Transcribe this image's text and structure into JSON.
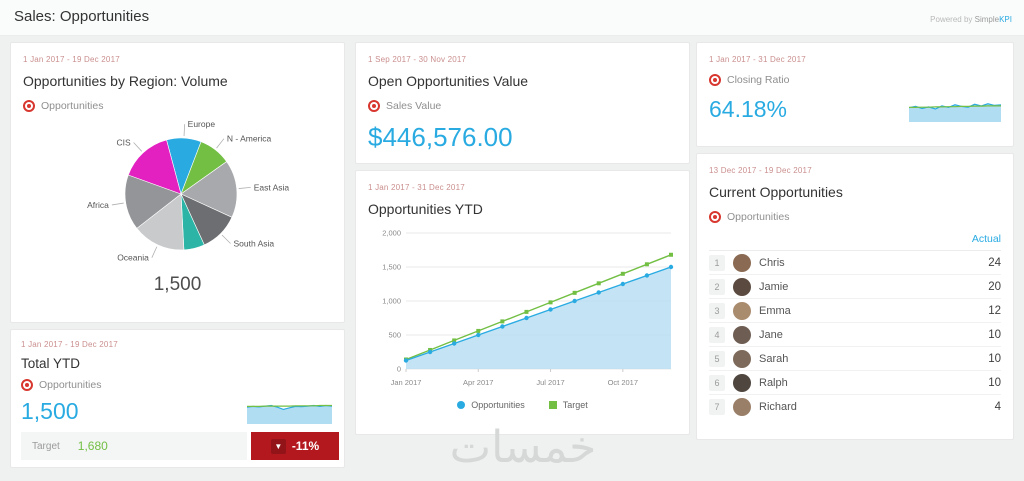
{
  "header": {
    "title": "Sales: Opportunities",
    "powered_by": "Powered by ",
    "brand_simple": "Simple",
    "brand_kpi": "KPI"
  },
  "watermark": "خمسات",
  "cards": {
    "region_volume": {
      "date_range": "1 Jan 2017 - 19 Dec 2017",
      "title": "Opportunities by Region: Volume",
      "kpi_label": "Opportunities",
      "total": "1,500"
    },
    "total_ytd": {
      "date_range": "1 Jan 2017 - 19 Dec 2017",
      "title": "Total YTD",
      "kpi_label": "Opportunities",
      "value": "1,500",
      "target_label": "Target",
      "target_value": "1,680",
      "target_value_color": "#72bf44",
      "delta": "-11%",
      "delta_color": "#b2181e"
    },
    "open_value": {
      "date_range": "1 Sep 2017 - 30 Nov 2017",
      "title": "Open Opportunities Value",
      "kpi_label": "Sales Value",
      "value": "$446,576.00"
    },
    "ytd_chart": {
      "date_range": "1 Jan 2017 - 31 Dec 2017",
      "title": "Opportunities YTD"
    },
    "closing_ratio": {
      "date_range": "1 Jan 2017 - 31 Dec 2017",
      "kpi_label": "Closing Ratio",
      "value": "64.18%"
    },
    "current_opportunities": {
      "date_range": "13 Dec 2017 - 19 Dec 2017",
      "title": "Current Opportunities",
      "kpi_label": "Opportunities",
      "column_header": "Actual",
      "rows": [
        {
          "rank": "1",
          "name": "Chris",
          "value": "24",
          "avatar_color": "#8a6a52"
        },
        {
          "rank": "2",
          "name": "Jamie",
          "value": "20",
          "avatar_color": "#5b4a3f"
        },
        {
          "rank": "3",
          "name": "Emma",
          "value": "12",
          "avatar_color": "#a98b6e"
        },
        {
          "rank": "4",
          "name": "Jane",
          "value": "10",
          "avatar_color": "#6e5d52"
        },
        {
          "rank": "5",
          "name": "Sarah",
          "value": "10",
          "avatar_color": "#7d6a5a"
        },
        {
          "rank": "6",
          "name": "Ralph",
          "value": "10",
          "avatar_color": "#4f463f"
        },
        {
          "rank": "7",
          "name": "Richard",
          "value": "4",
          "avatar_color": "#9a7f68"
        }
      ]
    }
  },
  "chart_data": [
    {
      "type": "pie",
      "title": "Opportunities by Region: Volume",
      "total": 1500,
      "total_label": "1,500",
      "start_angle": -15,
      "slices": [
        {
          "label": "Europe",
          "value": 150,
          "color": "#29abe2"
        },
        {
          "label": "N - America",
          "value": 140,
          "color": "#72bf44"
        },
        {
          "label": "East Asia",
          "value": 250,
          "color": "#a7a9ac"
        },
        {
          "label": "South Asia",
          "value": 170,
          "color": "#6d6e71"
        },
        {
          "label": "",
          "value": 90,
          "color": "#2cb5a6"
        },
        {
          "label": "Oceania",
          "value": 230,
          "color": "#c9cacc"
        },
        {
          "label": "Africa",
          "value": 240,
          "color": "#939598"
        },
        {
          "label": "CIS",
          "value": 230,
          "color": "#e320c0"
        }
      ]
    },
    {
      "type": "area",
      "title": "Opportunities YTD",
      "x": [
        "Jan 2017",
        "Feb 2017",
        "Mar 2017",
        "Apr 2017",
        "May 2017",
        "Jun 2017",
        "Jul 2017",
        "Aug 2017",
        "Sep 2017",
        "Oct 2017",
        "Nov 2017",
        "Dec 2017"
      ],
      "series": [
        {
          "name": "Opportunities",
          "color": "#29abe2",
          "fill": "#b5ddf2",
          "values": [
            125,
            250,
            375,
            500,
            625,
            750,
            875,
            1000,
            1125,
            1250,
            1375,
            1500
          ]
        },
        {
          "name": "Target",
          "color": "#72bf44",
          "values": [
            140,
            280,
            420,
            560,
            700,
            840,
            980,
            1120,
            1260,
            1400,
            1540,
            1680
          ]
        }
      ],
      "ylim": [
        0,
        2000
      ],
      "yticks": [
        {
          "v": 0,
          "label": "0"
        },
        {
          "v": 500,
          "label": "500"
        },
        {
          "v": 1000,
          "label": "1,000"
        },
        {
          "v": 1500,
          "label": "1,500"
        },
        {
          "v": 2000,
          "label": "2,000"
        }
      ],
      "xticks": [
        {
          "i": 0,
          "label": "Jan 2017"
        },
        {
          "i": 3,
          "label": "Apr 2017"
        },
        {
          "i": 6,
          "label": "Jul 2017"
        },
        {
          "i": 9,
          "label": "Oct 2017"
        }
      ],
      "grid": true,
      "legend_position": "bottom"
    },
    {
      "type": "sparkline-area",
      "title": "Total YTD trend",
      "series": [
        {
          "name": "Opportunities",
          "color": "#29abe2",
          "fill": "#a9d9f1",
          "values": [
            60,
            63,
            61,
            64,
            66,
            60,
            52,
            58,
            63,
            62,
            64,
            66,
            63,
            66,
            64
          ]
        },
        {
          "name": "Target",
          "color": "#72bf44",
          "values": [
            63,
            63,
            63,
            64,
            64,
            64,
            64,
            64,
            65,
            65,
            65,
            65,
            66,
            66,
            66
          ]
        }
      ]
    },
    {
      "type": "sparkline-area",
      "title": "Closing Ratio trend",
      "series": [
        {
          "name": "Closing Ratio",
          "color": "#29abe2",
          "fill": "#a9d9f1",
          "values": [
            55,
            60,
            52,
            58,
            50,
            62,
            56,
            66,
            60,
            57,
            68,
            62,
            70,
            64,
            66
          ]
        },
        {
          "name": "Target",
          "color": "#72bf44",
          "values": [
            56,
            56,
            57,
            57,
            58,
            58,
            59,
            59,
            60,
            60,
            61,
            61,
            62,
            62,
            62
          ]
        }
      ]
    }
  ]
}
